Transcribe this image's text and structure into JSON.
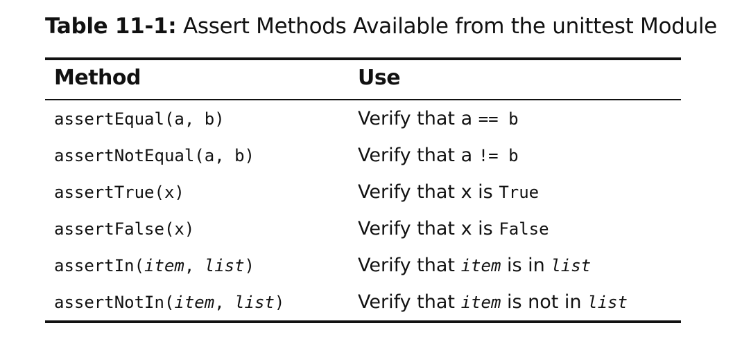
{
  "caption": {
    "label": "Table 11-1:",
    "title": " Assert Methods Available from the unittest Module"
  },
  "table": {
    "headers": [
      "Method",
      "Use"
    ],
    "rows": [
      {
        "method": [
          "assertEqual(a, b)"
        ],
        "use": [
          "Verify that a ",
          "==",
          " b"
        ]
      },
      {
        "method": [
          "assertNotEqual(a, b)"
        ],
        "use": [
          "Verify that a ",
          "!=",
          " b"
        ]
      },
      {
        "method": [
          "assertTrue(x)"
        ],
        "use": [
          "Verify that x is ",
          "True"
        ]
      },
      {
        "method": [
          "assertFalse(x)"
        ],
        "use": [
          "Verify that x is ",
          "False"
        ]
      },
      {
        "method": [
          "assertIn(",
          "item",
          ", ",
          "list",
          ")"
        ],
        "use": [
          "Verify that ",
          "item",
          " is in ",
          "list"
        ]
      },
      {
        "method": [
          "assertNotIn(",
          "item",
          ", ",
          "list",
          ")"
        ],
        "use": [
          "Verify that ",
          "item",
          " is not in ",
          "list"
        ]
      }
    ]
  }
}
